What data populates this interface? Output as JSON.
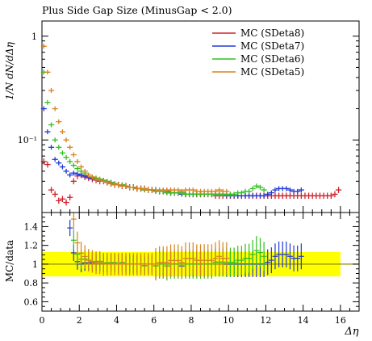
{
  "chart_data": [
    {
      "type": "scatter",
      "title": "Plus Side Gap Size (MinusGap < 2.0)",
      "ylabel": "1/N dN/dΔη",
      "yscale": "log",
      "ylim": [
        0.02,
        1.4
      ],
      "xlim": [
        0,
        17
      ],
      "ytick_labels": [
        "1",
        "10⁻¹"
      ],
      "legend_position": "top-right",
      "series": [
        {
          "name": "MC (SDeta8)",
          "color": "#d0202a",
          "x": [
            0.1,
            0.3,
            0.5,
            0.7,
            0.9,
            1.1,
            1.3,
            1.5,
            1.7,
            1.9,
            2.1,
            2.3,
            2.5,
            2.7,
            2.9,
            3.1,
            3.3,
            3.5,
            3.7,
            3.9,
            4.1,
            4.3,
            4.5,
            4.7,
            4.9,
            5.1,
            5.3,
            5.5,
            5.7,
            5.9,
            6.1,
            6.3,
            6.5,
            6.7,
            6.9,
            7.1,
            7.3,
            7.5,
            7.7,
            7.9,
            8.1,
            8.3,
            8.5,
            8.7,
            8.9,
            9.1,
            9.3,
            9.5,
            9.7,
            9.9,
            10.1,
            10.3,
            10.5,
            10.7,
            10.9,
            11.1,
            11.3,
            11.5,
            11.7,
            11.9,
            12.1,
            12.3,
            12.5,
            12.7,
            12.9,
            13.1,
            13.3,
            13.5,
            13.7,
            13.9,
            14.1,
            14.3,
            14.5,
            14.7,
            14.9,
            15.1,
            15.3,
            15.5,
            15.7,
            15.9
          ],
          "y": [
            0.062,
            0.058,
            0.033,
            0.03,
            0.026,
            0.027,
            0.025,
            0.028,
            0.04,
            0.045,
            0.046,
            0.044,
            0.043,
            0.042,
            0.041,
            0.04,
            0.04,
            0.039,
            0.038,
            0.037,
            0.037,
            0.036,
            0.036,
            0.035,
            0.035,
            0.034,
            0.034,
            0.034,
            0.033,
            0.033,
            0.033,
            0.032,
            0.032,
            0.032,
            0.031,
            0.031,
            0.031,
            0.031,
            0.03,
            0.03,
            0.03,
            0.03,
            0.03,
            0.03,
            0.03,
            0.03,
            0.029,
            0.029,
            0.029,
            0.029,
            0.029,
            0.029,
            0.029,
            0.029,
            0.029,
            0.029,
            0.029,
            0.029,
            0.029,
            0.029,
            0.029,
            0.029,
            0.029,
            0.029,
            0.029,
            0.029,
            0.029,
            0.029,
            0.029,
            0.029,
            0.029,
            0.029,
            0.029,
            0.029,
            0.029,
            0.029,
            0.029,
            0.029,
            0.03,
            0.033
          ]
        },
        {
          "name": "MC (SDeta7)",
          "color": "#2038d8",
          "x": [
            0.1,
            0.3,
            0.5,
            0.7,
            0.9,
            1.1,
            1.3,
            1.5,
            1.7,
            1.9,
            2.1,
            2.3,
            2.5,
            2.7,
            2.9,
            3.1,
            3.3,
            3.5,
            3.7,
            3.9,
            4.1,
            4.3,
            4.5,
            4.7,
            4.9,
            5.1,
            5.3,
            5.5,
            5.7,
            5.9,
            6.1,
            6.3,
            6.5,
            6.7,
            6.9,
            7.1,
            7.3,
            7.5,
            7.7,
            7.9,
            8.1,
            8.3,
            8.5,
            8.7,
            8.9,
            9.1,
            9.3,
            9.5,
            9.7,
            9.9,
            10.1,
            10.3,
            10.5,
            10.7,
            10.9,
            11.1,
            11.3,
            11.5,
            11.7,
            11.9,
            12.1,
            12.3,
            12.5,
            12.7,
            12.9,
            13.1,
            13.3,
            13.5,
            13.7,
            13.9
          ],
          "y": [
            0.2,
            0.12,
            0.085,
            0.065,
            0.06,
            0.055,
            0.05,
            0.046,
            0.048,
            0.047,
            0.046,
            0.045,
            0.044,
            0.043,
            0.042,
            0.041,
            0.04,
            0.039,
            0.039,
            0.038,
            0.037,
            0.037,
            0.036,
            0.035,
            0.035,
            0.034,
            0.034,
            0.033,
            0.033,
            0.033,
            0.032,
            0.032,
            0.032,
            0.031,
            0.031,
            0.031,
            0.031,
            0.03,
            0.03,
            0.03,
            0.03,
            0.03,
            0.03,
            0.03,
            0.03,
            0.03,
            0.03,
            0.03,
            0.03,
            0.029,
            0.029,
            0.029,
            0.029,
            0.029,
            0.029,
            0.029,
            0.029,
            0.029,
            0.029,
            0.029,
            0.03,
            0.031,
            0.033,
            0.034,
            0.034,
            0.034,
            0.033,
            0.032,
            0.032,
            0.033
          ]
        },
        {
          "name": "MC (SDeta6)",
          "color": "#30c020",
          "x": [
            0.1,
            0.3,
            0.5,
            0.7,
            0.9,
            1.1,
            1.3,
            1.5,
            1.7,
            1.9,
            2.1,
            2.3,
            2.5,
            2.7,
            2.9,
            3.1,
            3.3,
            3.5,
            3.7,
            3.9,
            4.1,
            4.3,
            4.5,
            4.7,
            4.9,
            5.1,
            5.3,
            5.5,
            5.7,
            5.9,
            6.1,
            6.3,
            6.5,
            6.7,
            6.9,
            7.1,
            7.3,
            7.5,
            7.7,
            7.9,
            8.1,
            8.3,
            8.5,
            8.7,
            8.9,
            9.1,
            9.3,
            9.5,
            9.7,
            9.9,
            10.1,
            10.3,
            10.5,
            10.7,
            10.9,
            11.1,
            11.3,
            11.5,
            11.7,
            11.9
          ],
          "y": [
            0.45,
            0.23,
            0.14,
            0.1,
            0.085,
            0.075,
            0.068,
            0.062,
            0.057,
            0.053,
            0.05,
            0.048,
            0.046,
            0.044,
            0.043,
            0.042,
            0.041,
            0.04,
            0.039,
            0.038,
            0.037,
            0.037,
            0.036,
            0.035,
            0.035,
            0.034,
            0.034,
            0.033,
            0.033,
            0.033,
            0.032,
            0.032,
            0.032,
            0.031,
            0.031,
            0.031,
            0.031,
            0.031,
            0.03,
            0.03,
            0.03,
            0.03,
            0.03,
            0.03,
            0.03,
            0.03,
            0.03,
            0.03,
            0.03,
            0.03,
            0.03,
            0.03,
            0.031,
            0.031,
            0.032,
            0.032,
            0.034,
            0.036,
            0.035,
            0.033
          ]
        },
        {
          "name": "MC (SDeta5)",
          "color": "#d8821c",
          "x": [
            0.1,
            0.3,
            0.5,
            0.7,
            0.9,
            1.1,
            1.3,
            1.5,
            1.7,
            1.9,
            2.1,
            2.3,
            2.5,
            2.7,
            2.9,
            3.1,
            3.3,
            3.5,
            3.7,
            3.9,
            4.1,
            4.3,
            4.5,
            4.7,
            4.9,
            5.1,
            5.3,
            5.5,
            5.7,
            5.9,
            6.1,
            6.3,
            6.5,
            6.7,
            6.9,
            7.1,
            7.3,
            7.5,
            7.7,
            7.9,
            8.1,
            8.3,
            8.5,
            8.7,
            8.9,
            9.1,
            9.3,
            9.5,
            9.7,
            9.9
          ],
          "y": [
            0.8,
            0.45,
            0.3,
            0.2,
            0.15,
            0.12,
            0.1,
            0.085,
            0.072,
            0.062,
            0.055,
            0.05,
            0.046,
            0.044,
            0.042,
            0.041,
            0.04,
            0.039,
            0.038,
            0.037,
            0.037,
            0.036,
            0.036,
            0.035,
            0.035,
            0.034,
            0.034,
            0.034,
            0.033,
            0.033,
            0.033,
            0.033,
            0.033,
            0.033,
            0.033,
            0.033,
            0.033,
            0.032,
            0.033,
            0.033,
            0.033,
            0.032,
            0.032,
            0.032,
            0.032,
            0.032,
            0.032,
            0.033,
            0.032,
            0.032
          ]
        }
      ]
    },
    {
      "type": "scatter",
      "ylabel": "MC/data",
      "xlabel": "Δη",
      "xlim": [
        0,
        17
      ],
      "ylim": [
        0.5,
        1.55
      ],
      "xticks": [
        0,
        2,
        4,
        6,
        8,
        10,
        12,
        14,
        16
      ],
      "yticks": [
        0.6,
        0.8,
        1,
        1.2,
        1.4
      ],
      "band": {
        "color": "#ffff00",
        "lower": 0.87,
        "upper": 1.13
      },
      "reference_line": 1
    }
  ]
}
